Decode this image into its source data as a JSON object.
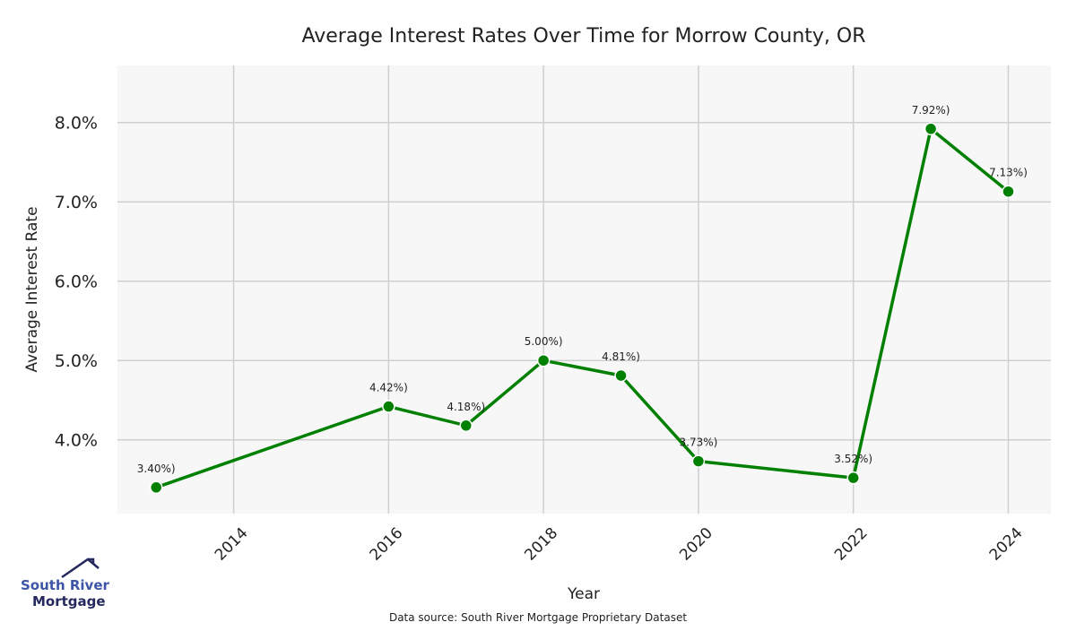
{
  "chart_data": {
    "type": "line",
    "title": "Average Interest Rates Over Time for Morrow County, OR",
    "xlabel": "Year",
    "ylabel": "Average Interest Rate",
    "x": [
      2013,
      2016,
      2017,
      2018,
      2019,
      2020,
      2022,
      2023,
      2024
    ],
    "series": [
      {
        "values": [
          3.4,
          4.42,
          4.18,
          5.0,
          4.81,
          3.73,
          3.52,
          7.92,
          7.13
        ]
      }
    ],
    "data_labels": [
      "3.40%)",
      "4.42%)",
      "4.18%)",
      "5.00%)",
      "4.81%)",
      "3.73%)",
      "3.52%)",
      "7.92%)",
      "7.13%)"
    ],
    "xticks": [
      "2014",
      "2016",
      "2018",
      "2020",
      "2022",
      "2024"
    ],
    "yticks": [
      "4.0%",
      "5.0%",
      "6.0%",
      "7.0%",
      "8.0%"
    ],
    "xlim": [
      2012.5,
      2024.55
    ],
    "ylim": [
      3.07,
      8.72
    ],
    "grid": true,
    "line_color": "#008000",
    "plot_background": "#f7f7f7"
  },
  "footer": {
    "source": "Data source: South River Mortgage Proprietary Dataset"
  },
  "logo": {
    "line1": "South River",
    "line2": "Mortgage"
  }
}
